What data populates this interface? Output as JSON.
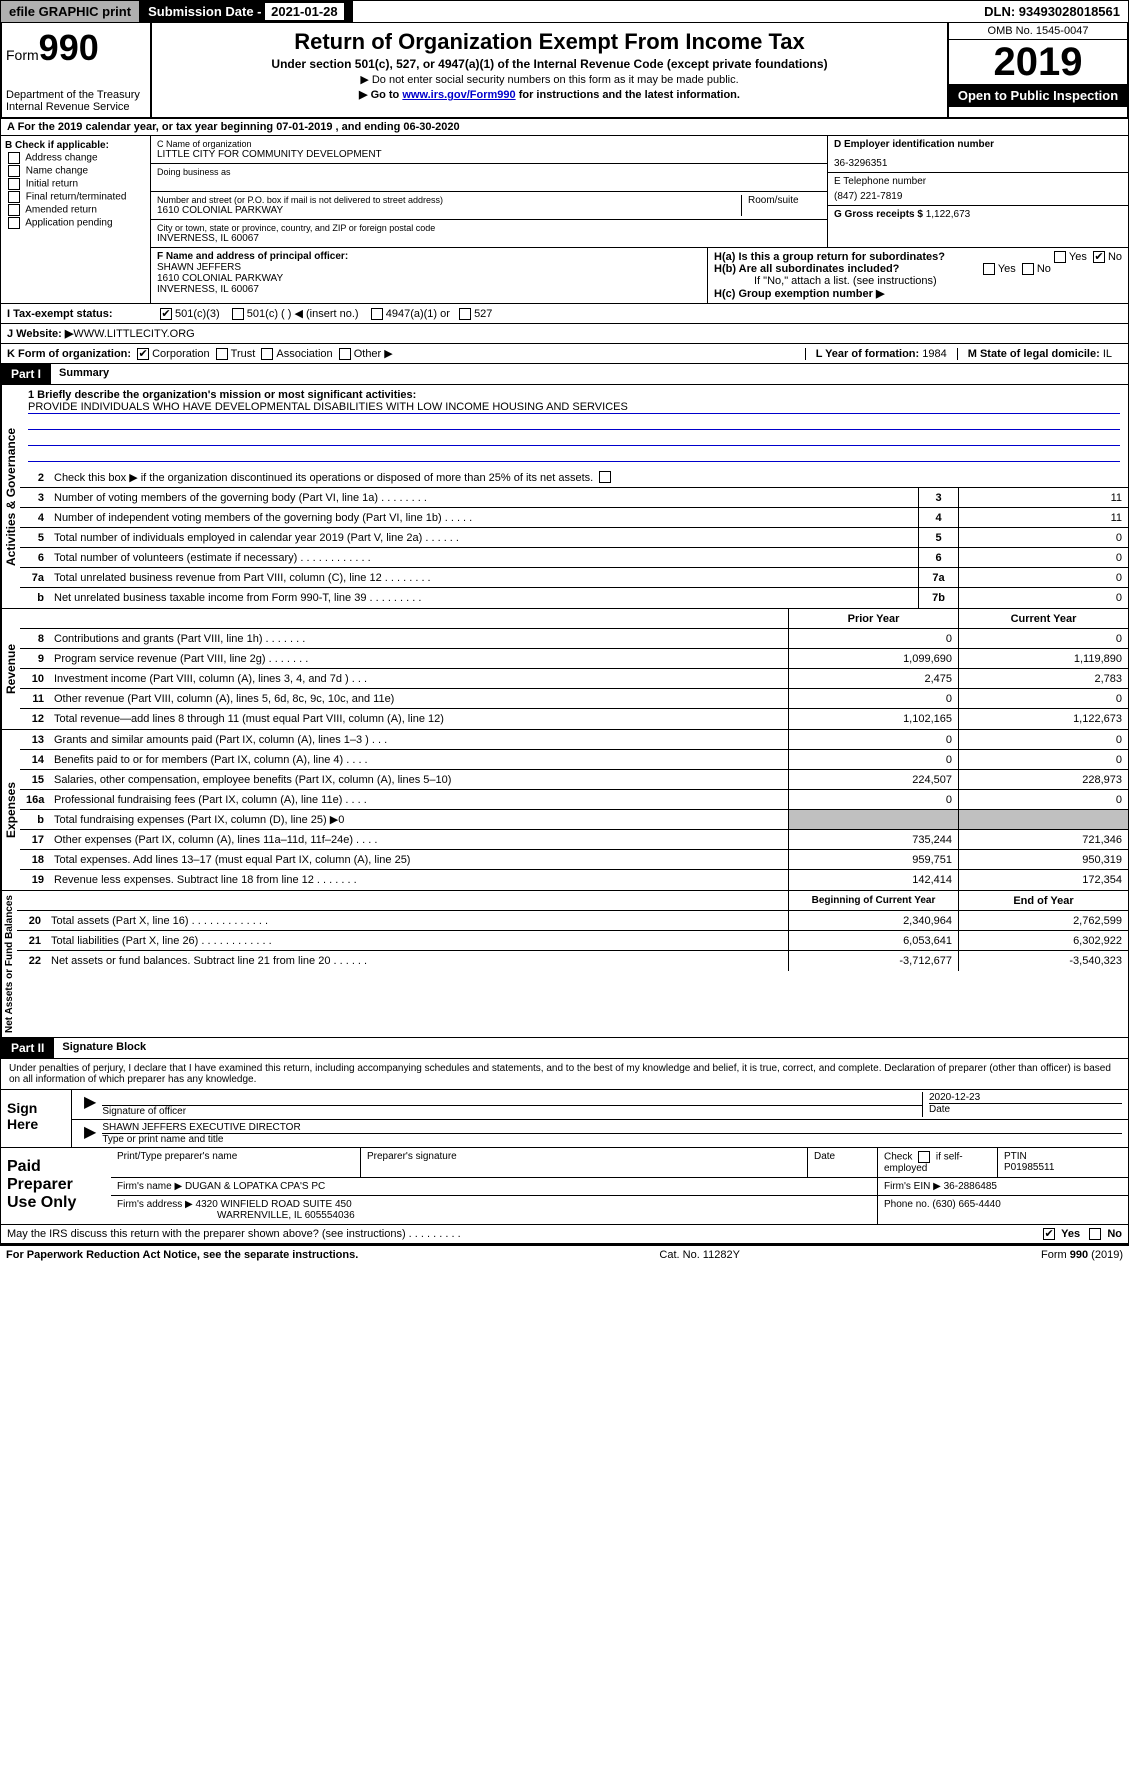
{
  "topbar": {
    "efile": "efile GRAPHIC print",
    "sub_label": "Submission Date - ",
    "sub_date": "2021-01-28",
    "dln": "DLN: 93493028018561"
  },
  "header": {
    "form_prefix": "Form",
    "form_num": "990",
    "dept": "Department of the Treasury\nInternal Revenue Service",
    "title": "Return of Organization Exempt From Income Tax",
    "subtitle": "Under section 501(c), 527, or 4947(a)(1) of the Internal Revenue Code (except private foundations)",
    "note1": "▶ Do not enter social security numbers on this form as it may be made public.",
    "note2_pre": "▶ Go to ",
    "note2_link": "www.irs.gov/Form990",
    "note2_post": " for instructions and the latest information.",
    "omb": "OMB No. 1545-0047",
    "year": "2019",
    "open": "Open to Public Inspection"
  },
  "rowA": "A   For the 2019 calendar year, or tax year beginning 07-01-2019    , and ending 06-30-2020",
  "colB": {
    "label": "B Check if applicable:",
    "opts": [
      "Address change",
      "Name change",
      "Initial return",
      "Final return/terminated",
      "Amended return",
      "Application pending"
    ]
  },
  "colC": {
    "name_label": "C Name of organization",
    "name": "LITTLE CITY FOR COMMUNITY DEVELOPMENT",
    "dba_label": "Doing business as",
    "addr_label": "Number and street (or P.O. box if mail is not delivered to street address)",
    "room_label": "Room/suite",
    "addr": "1610 COLONIAL PARKWAY",
    "city_label": "City or town, state or province, country, and ZIP or foreign postal code",
    "city": "INVERNESS, IL  60067"
  },
  "colD": {
    "ein_label": "D Employer identification number",
    "ein": "36-3296351",
    "phone_label": "E Telephone number",
    "phone": "(847) 221-7819",
    "gross_label": "G Gross receipts $ ",
    "gross": "1,122,673"
  },
  "colF": {
    "label": "F  Name and address of principal officer:",
    "name": "SHAWN JEFFERS",
    "addr1": "1610 COLONIAL PARKWAY",
    "addr2": "INVERNESS, IL  60067"
  },
  "colH": {
    "a": "H(a)  Is this a group return for subordinates?",
    "b": "H(b)  Are all subordinates included?",
    "b_note": "If \"No,\" attach a list. (see instructions)",
    "c": "H(c)  Group exemption number ▶",
    "yes": "Yes",
    "no": "No"
  },
  "rowI": {
    "label": "I    Tax-exempt status:",
    "o1": "501(c)(3)",
    "o2": "501(c) (   ) ◀ (insert no.)",
    "o3": "4947(a)(1) or",
    "o4": "527"
  },
  "rowJ": {
    "label": "J   Website: ▶  ",
    "val": "WWW.LITTLECITY.ORG"
  },
  "rowK": {
    "label": "K Form of organization:",
    "o1": "Corporation",
    "o2": "Trust",
    "o3": "Association",
    "o4": "Other ▶",
    "l_label": "L Year of formation: ",
    "l_val": "1984",
    "m_label": "M State of legal domicile: ",
    "m_val": "IL"
  },
  "part1": {
    "tag": "Part I",
    "title": "Summary",
    "q1_label": "1  Briefly describe the organization's mission or most significant activities:",
    "q1_val": "PROVIDE INDIVIDUALS WHO HAVE DEVELOPMENTAL DISABILITIES WITH LOW INCOME HOUSING AND SERVICES",
    "q2": "Check this box ▶        if the organization discontinued its operations or disposed of more than 25% of its net assets."
  },
  "gov_side": "Activities & Governance",
  "rev_side": "Revenue",
  "exp_side": "Expenses",
  "net_side": "Net Assets or Fund Balances",
  "lines_gov": [
    {
      "n": "3",
      "t": "Number of voting members of the governing body (Part VI, line 1a)   .    .    .    .    .    .    .    .",
      "b": "3",
      "v": "11"
    },
    {
      "n": "4",
      "t": "Number of independent voting members of the governing body (Part VI, line 1b)   .    .    .    .    .",
      "b": "4",
      "v": "11"
    },
    {
      "n": "5",
      "t": "Total number of individuals employed in calendar year 2019 (Part V, line 2a)   .    .    .    .    .    .",
      "b": "5",
      "v": "0"
    },
    {
      "n": "6",
      "t": "Total number of volunteers (estimate if necessary)   .    .    .    .    .    .    .    .    .    .    .    .",
      "b": "6",
      "v": "0"
    },
    {
      "n": "7a",
      "t": "Total unrelated business revenue from Part VIII, column (C), line 12   .    .    .    .    .    .    .    .",
      "b": "7a",
      "v": "0"
    },
    {
      "n": "b",
      "t": "Net unrelated business taxable income from Form 990-T, line 39   .    .    .    .    .    .    .    .    .",
      "b": "7b",
      "v": "0"
    }
  ],
  "col_hdr": {
    "prior": "Prior Year",
    "current": "Current Year",
    "boc": "Beginning of Current Year",
    "eoy": "End of Year"
  },
  "lines_rev": [
    {
      "n": "8",
      "t": "Contributions and grants (Part VIII, line 1h)   .    .    .    .    .    .    .",
      "p": "0",
      "c": "0"
    },
    {
      "n": "9",
      "t": "Program service revenue (Part VIII, line 2g)   .    .    .    .    .    .    .",
      "p": "1,099,690",
      "c": "1,119,890"
    },
    {
      "n": "10",
      "t": "Investment income (Part VIII, column (A), lines 3, 4, and 7d )   .    .    .",
      "p": "2,475",
      "c": "2,783"
    },
    {
      "n": "11",
      "t": "Other revenue (Part VIII, column (A), lines 5, 6d, 8c, 9c, 10c, and 11e)",
      "p": "0",
      "c": "0"
    },
    {
      "n": "12",
      "t": "Total revenue—add lines 8 through 11 (must equal Part VIII, column (A), line 12)",
      "p": "1,102,165",
      "c": "1,122,673"
    }
  ],
  "lines_exp": [
    {
      "n": "13",
      "t": "Grants and similar amounts paid (Part IX, column (A), lines 1–3 )   .    .    .",
      "p": "0",
      "c": "0"
    },
    {
      "n": "14",
      "t": "Benefits paid to or for members (Part IX, column (A), line 4)   .    .    .    .",
      "p": "0",
      "c": "0"
    },
    {
      "n": "15",
      "t": "Salaries, other compensation, employee benefits (Part IX, column (A), lines 5–10)",
      "p": "224,507",
      "c": "228,973"
    },
    {
      "n": "16a",
      "t": "Professional fundraising fees (Part IX, column (A), line 11e)   .    .    .    .",
      "p": "0",
      "c": "0"
    },
    {
      "n": "b",
      "t": "Total fundraising expenses (Part IX, column (D), line 25) ▶0",
      "p": "",
      "c": "",
      "shade": true
    },
    {
      "n": "17",
      "t": "Other expenses (Part IX, column (A), lines 11a–11d, 11f–24e)   .    .    .    .",
      "p": "735,244",
      "c": "721,346"
    },
    {
      "n": "18",
      "t": "Total expenses. Add lines 13–17 (must equal Part IX, column (A), line 25)",
      "p": "959,751",
      "c": "950,319"
    },
    {
      "n": "19",
      "t": "Revenue less expenses. Subtract line 18 from line 12   .    .    .    .    .    .    .",
      "p": "142,414",
      "c": "172,354"
    }
  ],
  "lines_net": [
    {
      "n": "20",
      "t": "Total assets (Part X, line 16)   .    .    .    .    .    .    .    .    .    .    .    .    .",
      "p": "2,340,964",
      "c": "2,762,599"
    },
    {
      "n": "21",
      "t": "Total liabilities (Part X, line 26)   .    .    .    .    .    .    .    .    .    .    .    .",
      "p": "6,053,641",
      "c": "6,302,922"
    },
    {
      "n": "22",
      "t": "Net assets or fund balances. Subtract line 21 from line 20   .    .    .    .    .    .",
      "p": "-3,712,677",
      "c": "-3,540,323"
    }
  ],
  "part2": {
    "tag": "Part II",
    "title": "Signature Block"
  },
  "sig": {
    "perjury": "Under penalties of perjury, I declare that I have examined this return, including accompanying schedules and statements, and to the best of my knowledge and belief, it is true, correct, and complete. Declaration of preparer (other than officer) is based on all information of which preparer has any knowledge.",
    "sign_here": "Sign Here",
    "sig_officer": "Signature of officer",
    "date_val": "2020-12-23",
    "date": "Date",
    "name_title": "SHAWN JEFFERS  EXECUTIVE DIRECTOR",
    "type_name": "Type or print name and title"
  },
  "prep": {
    "label": "Paid Preparer Use Only",
    "h1": "Print/Type preparer's name",
    "h2": "Preparer's signature",
    "h3": "Date",
    "h4_a": "Check",
    "h4_b": "if self-employed",
    "h5": "PTIN",
    "ptin": "P01985511",
    "firm_name_l": "Firm's name     ▶ ",
    "firm_name": "DUGAN & LOPATKA CPA'S PC",
    "firm_ein_l": "Firm's EIN ▶ ",
    "firm_ein": "36-2886485",
    "firm_addr_l": "Firm's address ▶ ",
    "firm_addr1": "4320 WINFIELD ROAD SUITE 450",
    "firm_addr2": "WARRENVILLE, IL  605554036",
    "phone_l": "Phone no. ",
    "phone": "(630) 665-4440"
  },
  "discuss": "May the IRS discuss this return with the preparer shown above? (see instructions)    .    .    .    .    .    .    .    .    .",
  "footer": {
    "l": "For Paperwork Reduction Act Notice, see the separate instructions.",
    "c": "Cat. No. 11282Y",
    "r": "Form 990 (2019)"
  }
}
